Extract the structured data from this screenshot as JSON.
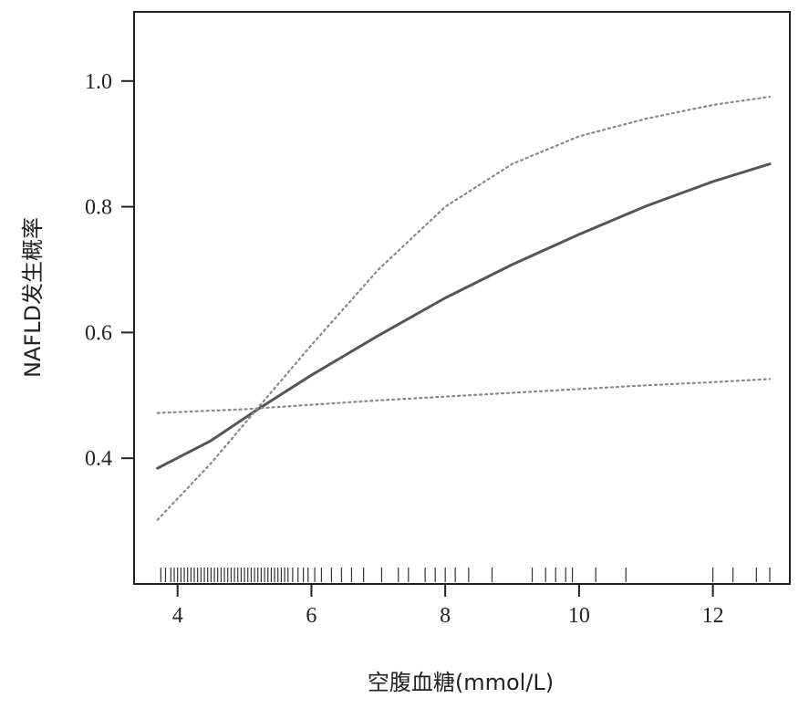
{
  "chart_data": {
    "type": "line",
    "title": "",
    "xlabel": "空腹血糖(mmol/L)",
    "ylabel": "NAFLD发生概率",
    "xlim": [
      3.35,
      13.15
    ],
    "ylim": [
      0.2,
      1.11
    ],
    "x_ticks": [
      4,
      6,
      8,
      10,
      12
    ],
    "y_ticks": [
      0.4,
      0.6,
      0.8,
      1.0
    ],
    "x_tick_labels": [
      "4",
      "6",
      "8",
      "10",
      "12"
    ],
    "y_tick_labels": [
      "0.4",
      "0.6",
      "0.8",
      "1.0"
    ],
    "grid": false,
    "legend": "none",
    "series": [
      {
        "style": "solid",
        "color": "#555555",
        "points": [
          [
            3.7,
            0.384
          ],
          [
            4.5,
            0.428
          ],
          [
            5.2,
            0.478
          ],
          [
            6.0,
            0.532
          ],
          [
            7.0,
            0.595
          ],
          [
            8.0,
            0.655
          ],
          [
            9.0,
            0.708
          ],
          [
            10.0,
            0.756
          ],
          [
            11.0,
            0.801
          ],
          [
            12.0,
            0.84
          ],
          [
            12.85,
            0.868
          ]
        ]
      },
      {
        "style": "dotted",
        "color": "#888888",
        "points": [
          [
            3.7,
            0.302
          ],
          [
            4.5,
            0.392
          ],
          [
            5.2,
            0.48
          ],
          [
            6.0,
            0.58
          ],
          [
            7.0,
            0.7
          ],
          [
            8.0,
            0.8
          ],
          [
            9.0,
            0.868
          ],
          [
            10.0,
            0.912
          ],
          [
            11.0,
            0.94
          ],
          [
            12.0,
            0.962
          ],
          [
            12.85,
            0.975
          ]
        ]
      },
      {
        "style": "dotted",
        "color": "#888888",
        "points": [
          [
            3.7,
            0.472
          ],
          [
            5.0,
            0.478
          ],
          [
            6.0,
            0.485
          ],
          [
            7.0,
            0.492
          ],
          [
            8.0,
            0.498
          ],
          [
            9.0,
            0.504
          ],
          [
            10.0,
            0.51
          ],
          [
            11.0,
            0.516
          ],
          [
            12.0,
            0.521
          ],
          [
            12.85,
            0.526
          ]
        ]
      }
    ],
    "rug": [
      3.75,
      3.82,
      3.9,
      3.95,
      4.0,
      4.05,
      4.1,
      4.15,
      4.2,
      4.25,
      4.3,
      4.35,
      4.4,
      4.45,
      4.5,
      4.55,
      4.6,
      4.65,
      4.7,
      4.75,
      4.8,
      4.85,
      4.9,
      4.95,
      5.0,
      5.05,
      5.1,
      5.15,
      5.2,
      5.25,
      5.3,
      5.35,
      5.4,
      5.45,
      5.5,
      5.55,
      5.6,
      5.65,
      5.72,
      5.8,
      5.88,
      5.95,
      6.05,
      6.15,
      6.3,
      6.45,
      6.6,
      6.78,
      7.05,
      7.3,
      7.45,
      7.7,
      7.85,
      8.0,
      8.15,
      8.35,
      8.7,
      9.3,
      9.5,
      9.65,
      9.8,
      9.9,
      10.25,
      10.7,
      12.0,
      12.3,
      12.65,
      12.85
    ]
  }
}
